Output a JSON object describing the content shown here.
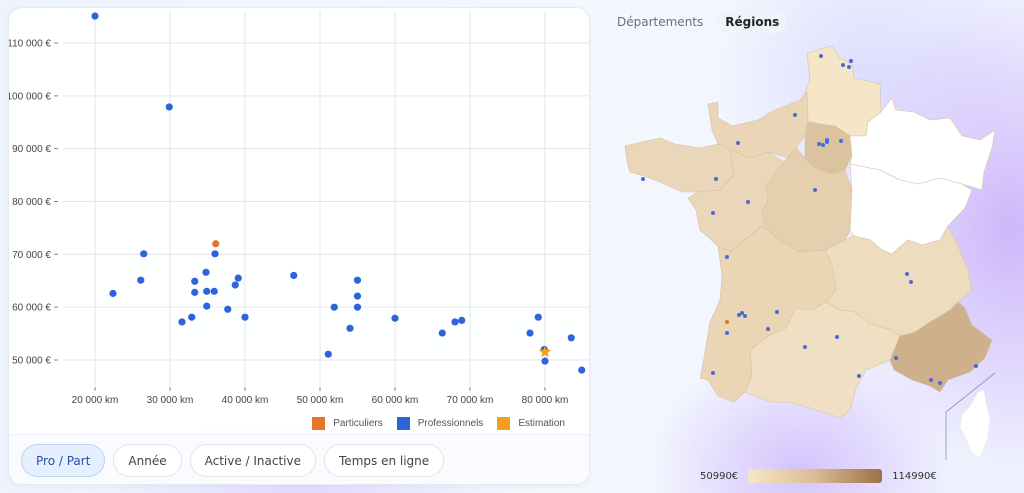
{
  "chart_data": {
    "type": "scatter",
    "title": "",
    "xlabel": "",
    "ylabel": "",
    "xlim": [
      17000,
      86000
    ],
    "ylim": [
      45000,
      115500
    ],
    "x_ticks": [
      "20 000 km",
      "30 000 km",
      "40 000 km",
      "50 000 km",
      "60 000 km",
      "70 000 km",
      "80 000 km"
    ],
    "y_ticks": [
      "110 000 €",
      "100 000 €",
      "90 000 €",
      "80 000 €",
      "70 000 €",
      "60 000 €",
      "50 000 €"
    ],
    "grid": true,
    "legend_position": "bottom-right",
    "series": [
      {
        "name": "Particuliers",
        "color": "#e8742a",
        "marker": "circle",
        "points": [
          [
            36100,
            72000
          ]
        ]
      },
      {
        "name": "Professionnels",
        "color": "#2d63db",
        "marker": "circle",
        "points": [
          [
            20000,
            115100
          ],
          [
            29900,
            97900
          ],
          [
            22400,
            62600
          ],
          [
            26100,
            65100
          ],
          [
            26500,
            70100
          ],
          [
            31600,
            57200
          ],
          [
            32900,
            58100
          ],
          [
            33300,
            62800
          ],
          [
            33300,
            64900
          ],
          [
            34800,
            66600
          ],
          [
            34900,
            60200
          ],
          [
            34900,
            63000
          ],
          [
            35900,
            63000
          ],
          [
            36000,
            70100
          ],
          [
            37700,
            59600
          ],
          [
            38700,
            64200
          ],
          [
            39100,
            65500
          ],
          [
            40000,
            58100
          ],
          [
            46500,
            66000
          ],
          [
            51100,
            51100
          ],
          [
            51900,
            60000
          ],
          [
            54000,
            56000
          ],
          [
            55000,
            65100
          ],
          [
            55000,
            62100
          ],
          [
            55000,
            60000
          ],
          [
            60000,
            57900
          ],
          [
            66300,
            55100
          ],
          [
            68000,
            57200
          ],
          [
            68900,
            57500
          ],
          [
            78000,
            55100
          ],
          [
            79100,
            58100
          ],
          [
            79900,
            52000
          ],
          [
            80000,
            49800
          ],
          [
            83500,
            54200
          ],
          [
            84900,
            48100
          ]
        ]
      },
      {
        "name": "Estimation",
        "color": "#f5a01a",
        "marker": "star",
        "points": [
          [
            80000,
            51500
          ]
        ]
      }
    ]
  },
  "legend": {
    "items": [
      {
        "label": "Particuliers",
        "color": "#e8742a"
      },
      {
        "label": "Professionnels",
        "color": "#2d63db"
      },
      {
        "label": "Estimation",
        "color": "#f5a01a"
      }
    ]
  },
  "filters": {
    "buttons": [
      {
        "label": "Pro / Part",
        "active": true
      },
      {
        "label": "Année",
        "active": false
      },
      {
        "label": "Active / Inactive",
        "active": false
      },
      {
        "label": "Temps en ligne",
        "active": false
      }
    ]
  },
  "map": {
    "tabs": [
      {
        "label": "Départements",
        "active": false
      },
      {
        "label": "Régions",
        "active": true
      }
    ],
    "scale": {
      "min_label": "50990€",
      "max_label": "114990€",
      "min_color": "#f6e6c6",
      "max_color": "#9c7145"
    },
    "region_colors": {
      "hauts_de_france": "#f6e6c8",
      "normandie": "#ead5b6",
      "ile_de_france": "#dcc3a0",
      "bretagne": "#ead6b8",
      "pays_de_la_loire": "#ead6b8",
      "centre_val_de_loire": "#e6cfae",
      "grand_est": "#ffffff",
      "bourgogne_franche_comte": "#ffffff",
      "nouvelle_aquitaine": "#ead5b5",
      "auvergne_rhone_alpes": "#eedcbe",
      "occitanie": "#f0dfc3",
      "paca": "#cfb08c",
      "corse": "#ffffff"
    },
    "dot_color": "#4a6bd6",
    "highlight_dot_color": "#e8742a"
  }
}
